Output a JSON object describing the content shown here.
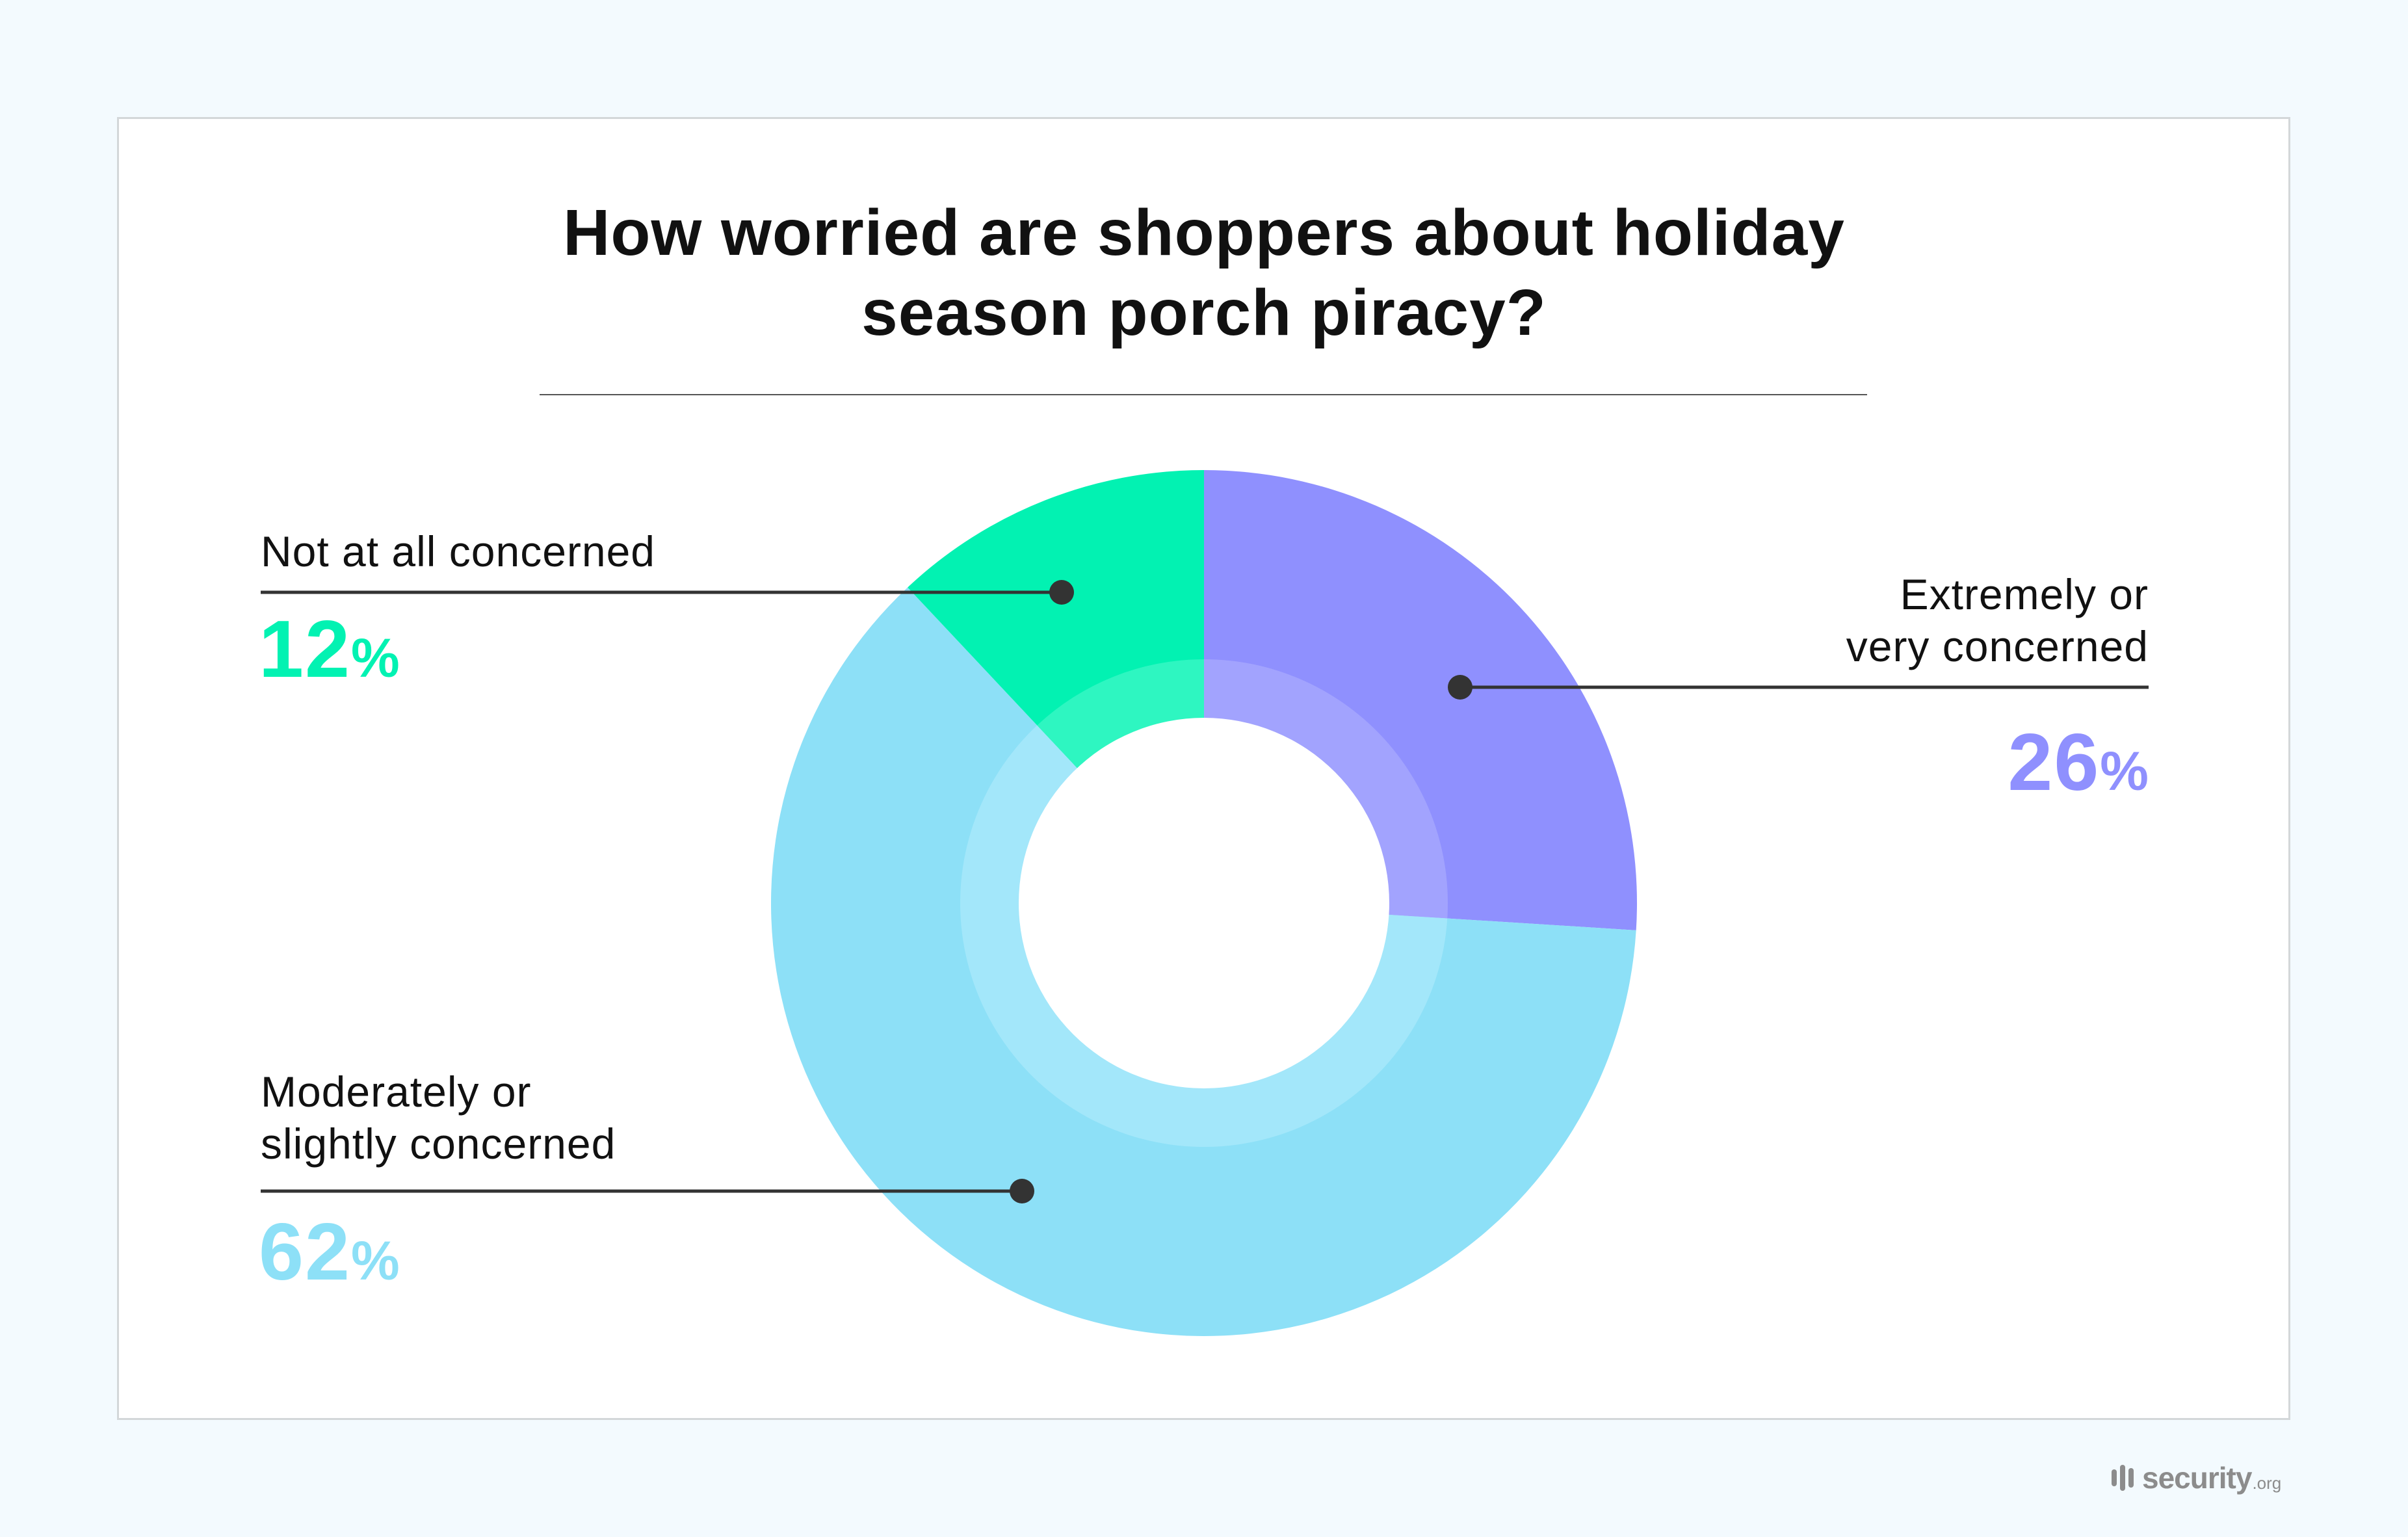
{
  "title": {
    "line1": "How worried are shoppers about holiday",
    "line2": "season porch piracy?"
  },
  "slices": [
    {
      "key": "extreme",
      "label_lines": [
        "Extremely or",
        "very concerned"
      ],
      "value": 26,
      "value_text": "26",
      "suffix": "%",
      "color": "#8F90FE",
      "ring_color": "#A2A3FE"
    },
    {
      "key": "moderate",
      "label_lines": [
        "Moderately or",
        "slightly concerned"
      ],
      "value": 62,
      "value_text": "62",
      "suffix": "%",
      "color": "#8DE0F7",
      "ring_color": "#A3E7FA"
    },
    {
      "key": "not_at_all",
      "label_lines": [
        "Not at all concerned"
      ],
      "value": 12,
      "value_text": "12",
      "suffix": "%",
      "color": "#02F2B2",
      "ring_color": "#2EF6C1"
    }
  ],
  "branding": {
    "logo_word": "security",
    "logo_tld": ".org"
  },
  "colors": {
    "page_background": "#F3FAFE",
    "card_background": "#FFFFFF",
    "card_border": "#D3D7D9",
    "leader_line": "#333333",
    "text": "#111111",
    "logo": "#8C8C8C"
  },
  "chart_data": {
    "type": "pie",
    "subtype": "donut",
    "title": "How worried are shoppers about holiday season porch piracy?",
    "categories": [
      "Extremely or very concerned",
      "Moderately or slightly concerned",
      "Not at all concerned"
    ],
    "values": [
      26,
      62,
      12
    ],
    "unit": "%",
    "colors": [
      "#8F90FE",
      "#8DE0F7",
      "#02F2B2"
    ],
    "start_angle_deg": 0,
    "direction": "clockwise",
    "legend": "callout labels with leader lines",
    "xlabel": "",
    "ylabel": ""
  }
}
